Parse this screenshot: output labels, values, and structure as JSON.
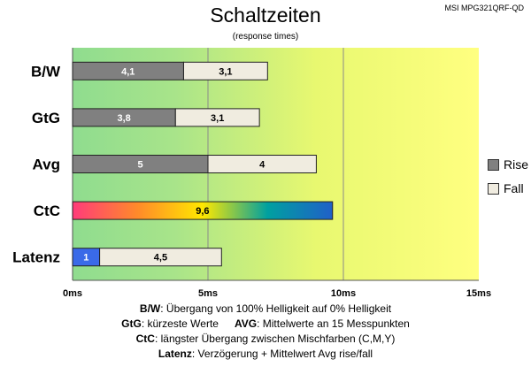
{
  "model": "MSI MPG321QRF-QD",
  "chart_data": {
    "type": "bar",
    "orientation": "horizontal",
    "stacked": true,
    "title": "Schaltzeiten",
    "subtitle": "(response times)",
    "categories": [
      "B/W",
      "GtG",
      "Avg",
      "CtC",
      "Latenz"
    ],
    "series": [
      {
        "name": "Rise",
        "color": "#808080",
        "values": [
          4.1,
          3.8,
          5,
          null,
          1
        ],
        "labels": [
          "4,1",
          "3,8",
          "5",
          null,
          "1"
        ]
      },
      {
        "name": "Fall",
        "color": "#f0ece0",
        "values": [
          3.1,
          3.1,
          4,
          null,
          4.5
        ],
        "labels": [
          "3,1",
          "3,1",
          "4",
          null,
          "4,5"
        ]
      },
      {
        "name": "",
        "values": [
          null,
          null,
          null,
          9.6,
          null
        ],
        "labels": [
          null,
          null,
          null,
          "9,6",
          null
        ]
      }
    ],
    "xlim": [
      0,
      15
    ],
    "xticks": [
      "0ms",
      "5ms",
      "10ms",
      "15ms"
    ],
    "tick_values": [
      0,
      5,
      10,
      15
    ],
    "legend_position": "right",
    "background_gradient": [
      "#8fdc8f",
      "#ffff80"
    ],
    "ctc_gradient": [
      "#ff3b7a",
      "#ff8a2a",
      "#ffe800",
      "#00a0a0",
      "#2060c8"
    ],
    "latency_rise_color": "#3a6ae8"
  },
  "footnotes": {
    "bw_label": "B/W",
    "bw_text": ":  Übergang von 100% Helligkeit auf 0% Helligkeit",
    "gtg_label": "GtG",
    "gtg_text": ": kürzeste  Werte",
    "avg_label": "AVG",
    "avg_text": ": Mittelwerte  an 15 Messpunkten",
    "ctc_label": "CtC",
    "ctc_text": ": längster Übergang zwischen Mischfarben (C,M,Y)",
    "lat_label": "Latenz",
    "lat_text": ": Verzögerung  + Mittelwert  Avg rise/fall"
  }
}
